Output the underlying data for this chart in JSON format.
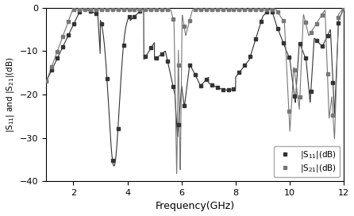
{
  "xlabel": "Frequency(GHz)",
  "ylabel": "|S$_{11}$| and |S$_{21}$|(dB)",
  "xlim": [
    1,
    12
  ],
  "ylim": [
    -40,
    0
  ],
  "yticks": [
    0,
    -10,
    -20,
    -30,
    -40
  ],
  "xticks": [
    2,
    4,
    6,
    8,
    10,
    12
  ],
  "legend_s11": "|S$_{11}$|(dB)",
  "legend_s21": "|S$_{21}$|(dB)",
  "s11_color": "#333333",
  "s21_color": "#777777",
  "figsize": [
    4.46,
    2.72
  ],
  "dpi": 100
}
